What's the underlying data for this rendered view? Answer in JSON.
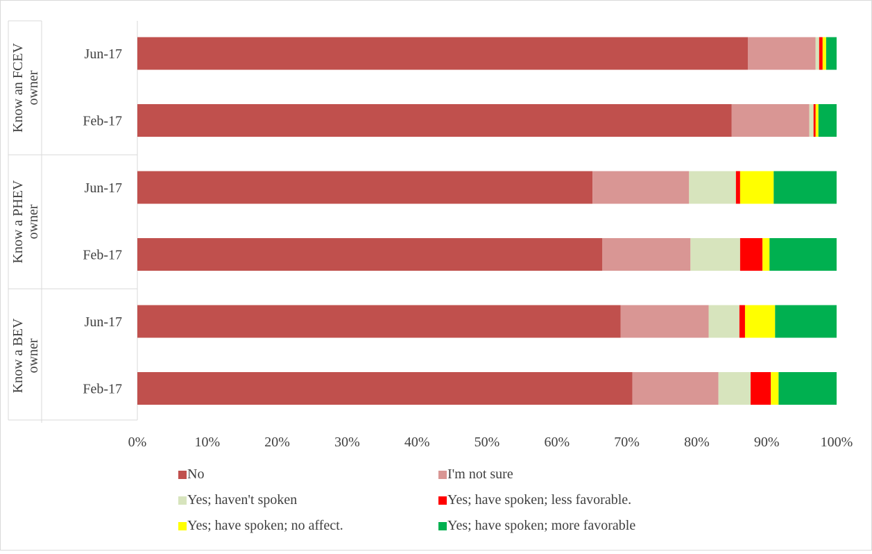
{
  "chart_data": {
    "type": "bar",
    "orientation": "horizontal",
    "stacked": true,
    "percent": true,
    "xlim": [
      0,
      100
    ],
    "x_ticks": [
      "0%",
      "10%",
      "20%",
      "30%",
      "40%",
      "50%",
      "60%",
      "70%",
      "80%",
      "90%",
      "100%"
    ],
    "groups": [
      {
        "label": "Know an FCEV owner",
        "label_lines": [
          "Know an FCEV",
          "owner"
        ],
        "rows": [
          {
            "label": "Jun-17",
            "values": [
              87.3,
              9.7,
              0.5,
              0.5,
              0.5,
              1.5
            ]
          },
          {
            "label": "Feb-17",
            "values": [
              85.0,
              11.1,
              0.6,
              0.3,
              0.4,
              2.6
            ]
          }
        ]
      },
      {
        "label": "Know a PHEV owner",
        "label_lines": [
          "Know a PHEV",
          "owner"
        ],
        "rows": [
          {
            "label": "Jun-17",
            "values": [
              65.1,
              13.8,
              6.7,
              0.6,
              4.8,
              9.0
            ]
          },
          {
            "label": "Feb-17",
            "values": [
              66.5,
              12.6,
              7.1,
              3.2,
              1.0,
              9.6
            ]
          }
        ]
      },
      {
        "label": "Know a BEV owner",
        "label_lines": [
          "Know a BEV",
          "owner"
        ],
        "rows": [
          {
            "label": "Jun-17",
            "values": [
              69.1,
              12.6,
              4.4,
              0.8,
              4.3,
              8.8
            ]
          },
          {
            "label": "Feb-17",
            "values": [
              70.8,
              12.3,
              4.6,
              2.9,
              1.1,
              8.3
            ]
          }
        ]
      }
    ],
    "series": [
      {
        "name": "No",
        "color": "#c0504d"
      },
      {
        "name": "I'm not sure",
        "color": "#d99694"
      },
      {
        "name": "Yes; haven't spoken",
        "color": "#d7e4bd"
      },
      {
        "name": "Yes; have spoken; less favorable.",
        "color": "#ff0000"
      },
      {
        "name": "Yes; have spoken; no affect.",
        "color": "#ffff00"
      },
      {
        "name": "Yes; have spoken; more favorable",
        "color": "#00b050"
      }
    ],
    "legend_position": "bottom",
    "grid": false
  }
}
